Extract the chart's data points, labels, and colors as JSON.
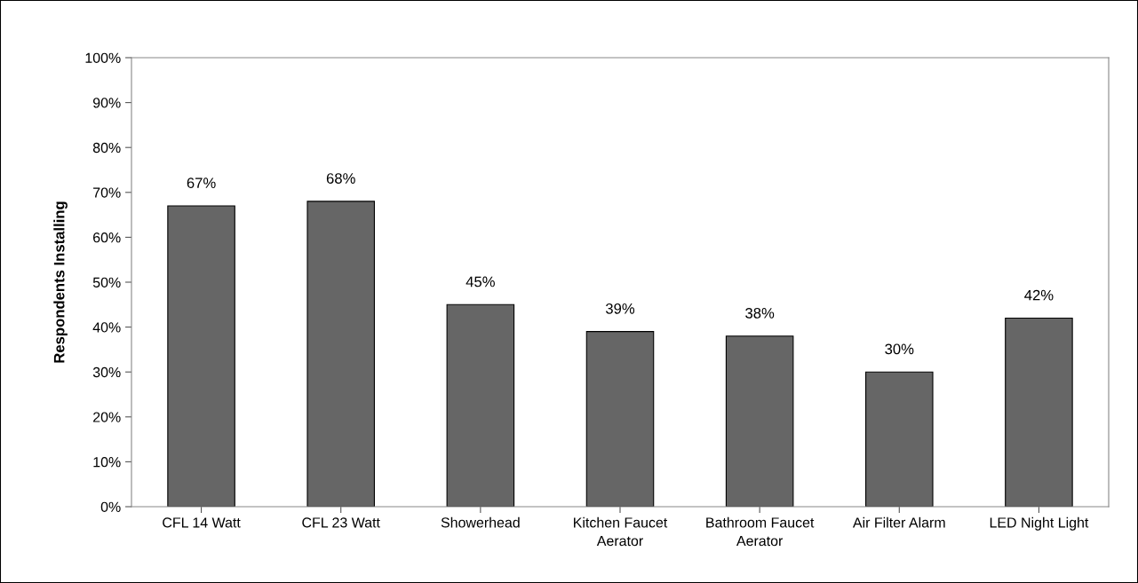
{
  "chart_data": {
    "type": "bar",
    "ylabel": "Respondents Installing",
    "categories": [
      "CFL 14 Watt",
      "CFL 23 Watt",
      "Showerhead",
      "Kitchen Faucet\nAerator",
      "Bathroom Faucet\nAerator",
      "Air Filter Alarm",
      "LED Night Light"
    ],
    "values": [
      67,
      68,
      45,
      39,
      38,
      30,
      42
    ],
    "value_labels": [
      "67%",
      "68%",
      "45%",
      "39%",
      "38%",
      "30%",
      "42%"
    ],
    "color": "#666666",
    "ylim": [
      0,
      100
    ],
    "yticks": [
      {
        "value": 0,
        "label": "0%"
      },
      {
        "value": 10,
        "label": "10%"
      },
      {
        "value": 20,
        "label": "20%"
      },
      {
        "value": 30,
        "label": "30%"
      },
      {
        "value": 40,
        "label": "40%"
      },
      {
        "value": 50,
        "label": "50%"
      },
      {
        "value": 60,
        "label": "60%"
      },
      {
        "value": 70,
        "label": "70%"
      },
      {
        "value": 80,
        "label": "80%"
      },
      {
        "value": 90,
        "label": "90%"
      },
      {
        "value": 100,
        "label": "100%"
      }
    ],
    "grid": false
  }
}
